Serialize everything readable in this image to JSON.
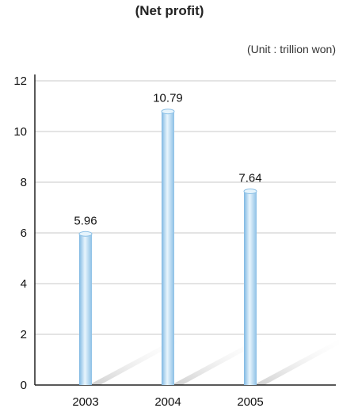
{
  "chart_data": {
    "type": "bar",
    "title": "(Net profit)",
    "unit_note": "(Unit : trillion won)",
    "categories": [
      "2003",
      "2004",
      "2005"
    ],
    "values": [
      5.96,
      10.79,
      7.64
    ],
    "data_labels": [
      "5.96",
      "10.79",
      "7.64"
    ],
    "ylim": [
      0,
      12
    ],
    "yticks": [
      0,
      2,
      4,
      6,
      8,
      10,
      12
    ],
    "grid": true,
    "bar_color": "#9ccbec",
    "bar_highlight": "#e6f4fc",
    "grid_color": "#c8c8c8",
    "shadow_color": "#dcdcdc"
  }
}
